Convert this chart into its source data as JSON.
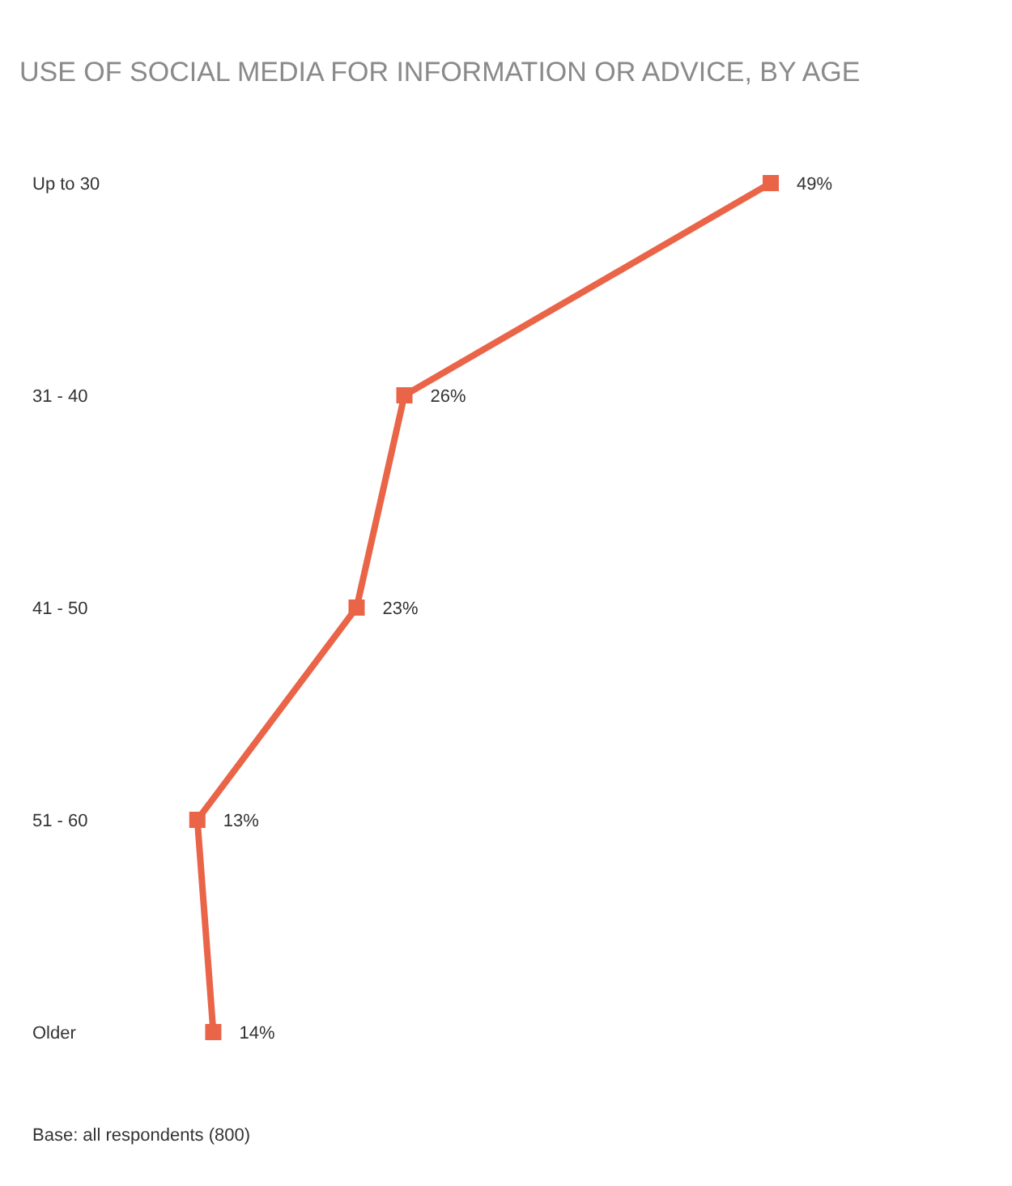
{
  "chart_data": {
    "type": "line",
    "title": "USE OF SOCIAL MEDIA FOR INFORMATION OR ADVICE, BY AGE",
    "orientation": "horizontal",
    "categories": [
      "Up to 30",
      "31 - 40",
      "41 - 50",
      "51 - 60",
      "Older"
    ],
    "series": [
      {
        "color": "#ea6448",
        "values": [
          49,
          26,
          23,
          13,
          14
        ],
        "value_labels": [
          "49%",
          "26%",
          "23%",
          "13%",
          "14%"
        ]
      }
    ],
    "marker": "square",
    "annotations": [
      "Base: all respondents (800)"
    ]
  }
}
